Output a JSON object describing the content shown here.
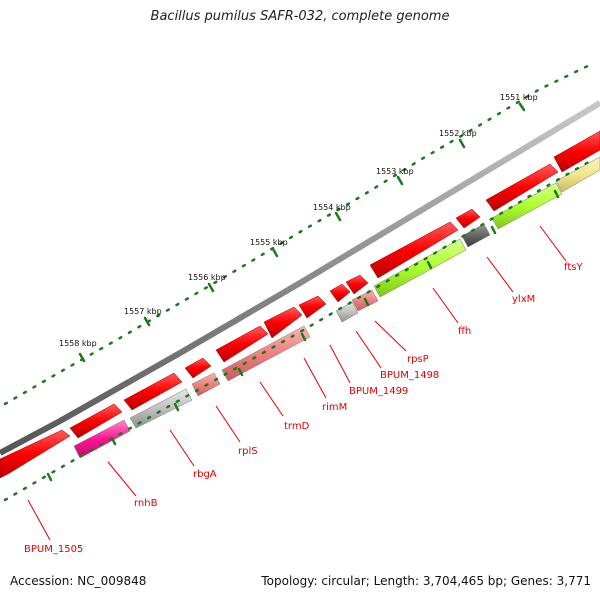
{
  "title": "Bacillus pumilus SAFR-032, complete genome",
  "footer": {
    "accession": "Accession: NC_009848",
    "summary": "Topology: circular; Length: 3,704,465 bp; Genes: 3,771"
  },
  "colors": {
    "backbone": "#8a8a8a",
    "forward_gene": "#ff0000",
    "label": "#e00000",
    "tick": "#1a7a1a"
  },
  "ticks": [
    {
      "label": "1551 kbp"
    },
    {
      "label": "1552 kbp"
    },
    {
      "label": "1553 kbp"
    },
    {
      "label": "1554 kbp"
    },
    {
      "label": "1555 kbp"
    },
    {
      "label": "1556 kbp"
    },
    {
      "label": "1557 kbp"
    },
    {
      "label": "1558 kbp"
    }
  ],
  "genes": [
    {
      "name": "BPUM_1505",
      "strand": "reverse",
      "color": "#ff0000"
    },
    {
      "name": "rnhB",
      "strand": "reverse",
      "color": "#ff1493"
    },
    {
      "name": "rbgA",
      "strand": "reverse",
      "color": "#c0c0c0"
    },
    {
      "name": "rplS",
      "strand": "reverse",
      "color": "#f08080"
    },
    {
      "name": "trmD",
      "strand": "reverse",
      "color": "#f08080"
    },
    {
      "name": "rimM",
      "strand": "reverse",
      "color": "#ff0000"
    },
    {
      "name": "BPUM_1499",
      "strand": "reverse",
      "color": "#c0c0c0"
    },
    {
      "name": "BPUM_1498",
      "strand": "reverse",
      "color": "#f08080"
    },
    {
      "name": "rpsP",
      "strand": "reverse",
      "color": "#ff0000"
    },
    {
      "name": "ffh",
      "strand": "reverse",
      "color": "#adff2f"
    },
    {
      "name": "ylxM",
      "strand": "reverse",
      "color": "#666666"
    },
    {
      "name": "ftsY",
      "strand": "reverse",
      "color": "#adff2f"
    }
  ]
}
